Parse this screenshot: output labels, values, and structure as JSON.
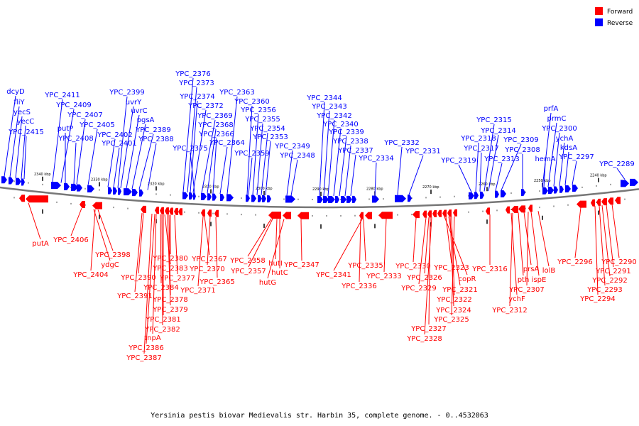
{
  "colors": {
    "forward": "#ff0000",
    "reverse": "#0000ff",
    "backbone": "#777777"
  },
  "legend": {
    "forward": "Forward",
    "reverse": "Reverse"
  },
  "caption": "Yersinia pestis biovar Medievalis str. Harbin 35, complete genome. - 0..4532063",
  "ticks": [
    "2340 kbp",
    "2330 kbp",
    "2320 kbp",
    "2310 kbp",
    "2300 kbp",
    "2290 kbp",
    "2280 kbp",
    "2270 kbp",
    "2260 kbp",
    "2250 kbp",
    "2240 kbp"
  ],
  "reverse_labels": [
    "dcyD",
    "fliY",
    "yecS",
    "yecC",
    "YPC_2415",
    "YPC_2411",
    "YPC_2409",
    "putP",
    "YPC_2408",
    "YPC_2407",
    "YPC_2405",
    "YPC_2402",
    "YPC_2401",
    "YPC_2399",
    "uvrY",
    "uvrC",
    "pgsA",
    "YPC_2389",
    "YPC_2388",
    "YPC_2376",
    "YPC_2373",
    "YPC_2374",
    "YPC_2372",
    "YPC_2375",
    "YPC_2369",
    "YPC_2368",
    "YPC_2366",
    "YPC_2364",
    "YPC_2363",
    "YPC_2360",
    "YPC_2356",
    "YPC_2355",
    "YPC_2354",
    "YPC_2353",
    "YPC_2359",
    "YPC_2349",
    "YPC_2348",
    "YPC_2344",
    "YPC_2343",
    "YPC_2342",
    "YPC_2340",
    "YPC_2339",
    "YPC_2338",
    "YPC_2337",
    "YPC_2334",
    "YPC_2332",
    "YPC_2331",
    "YPC_2319",
    "YPC_2318",
    "YPC_2317",
    "YPC_2315",
    "YPC_2314",
    "YPC_2313",
    "YPC_2309",
    "YPC_2308",
    "prfA",
    "prmC",
    "YPC_2300",
    "ychA",
    "kdsA",
    "hemA",
    "YPC_2297",
    "YPC_2289"
  ],
  "forward_labels": [
    "putA",
    "YPC_2406",
    "YPC_2404",
    "YPC_2398",
    "ydgC",
    "YPC_2390",
    "YPC_2391",
    "YPC_2380",
    "YPC_2383",
    "YPC_2384",
    "YPC_2377",
    "YPC_2378",
    "YPC_2379",
    "YPC_2381",
    "YPC_2382",
    "tnpA",
    "YPC_2386",
    "YPC_2387",
    "YPC_2367",
    "YPC_2370",
    "YPC_2365",
    "YPC_2371",
    "YPC_2358",
    "YPC_2357",
    "hutI",
    "hutC",
    "hutG",
    "YPC_2347",
    "YPC_2341",
    "YPC_2335",
    "YPC_2336",
    "YPC_2333",
    "YPC_2330",
    "YPC_2329",
    "YPC_2326",
    "YPC_2327",
    "YPC_2328",
    "YPC_2323",
    "copR",
    "YPC_2321",
    "YPC_2322",
    "YPC_2324",
    "YPC_2325",
    "YPC_2316",
    "ychF",
    "YPC_2312",
    "pth",
    "prsA",
    "ispE",
    "YPC_2307",
    "lolB",
    "YPC_2296",
    "YPC_2290",
    "YPC_2291",
    "YPC_2292",
    "YPC_2293",
    "YPC_2294"
  ]
}
